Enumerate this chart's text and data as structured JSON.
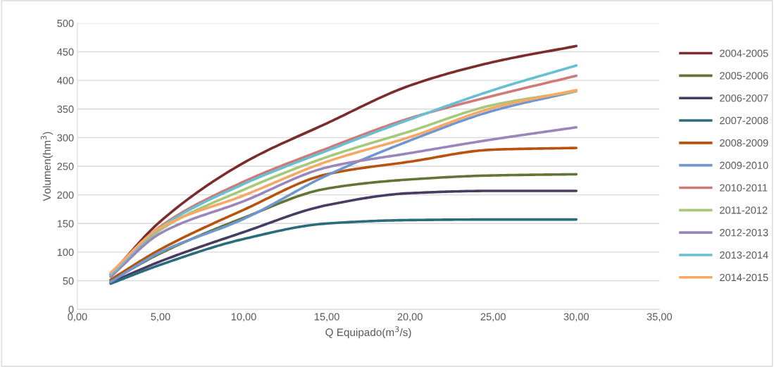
{
  "chart_data": {
    "type": "line",
    "xlabel": "Q Equipado(m$^{3}$/s)",
    "ylabel": "Volumen(hm$^{3}$)",
    "x": [
      2,
      5,
      10,
      15,
      20,
      25,
      30
    ],
    "xlim": [
      0,
      35
    ],
    "xticks": [
      {
        "value": 0,
        "label": "0,00"
      },
      {
        "value": 5,
        "label": "5,00"
      },
      {
        "value": 10,
        "label": "10,00"
      },
      {
        "value": 15,
        "label": "15,00"
      },
      {
        "value": 20,
        "label": "20,00"
      },
      {
        "value": 25,
        "label": "25,00"
      },
      {
        "value": 30,
        "label": "30,00"
      },
      {
        "value": 35,
        "label": "35,00"
      }
    ],
    "ylim": [
      0,
      500
    ],
    "yticks": [
      0,
      50,
      100,
      150,
      200,
      250,
      300,
      350,
      400,
      450,
      500
    ],
    "grid": "y",
    "legend": "right",
    "marker": "none",
    "line_style": "solid",
    "series": [
      {
        "name": "2004-2005",
        "color": "#7b2c2c",
        "values": [
          61,
          154,
          256,
          325,
          391,
          432,
          460
        ]
      },
      {
        "name": "2005-2006",
        "color": "#637536",
        "values": [
          50,
          98,
          160,
          211,
          227,
          234,
          236
        ]
      },
      {
        "name": "2006-2007",
        "color": "#4a3b62",
        "values": [
          47,
          84,
          135,
          182,
          203,
          207,
          207
        ]
      },
      {
        "name": "2007-2008",
        "color": "#2a6c7c",
        "values": [
          45,
          78,
          123,
          150,
          156,
          157,
          157
        ]
      },
      {
        "name": "2008-2009",
        "color": "#b8530e",
        "values": [
          52,
          105,
          174,
          236,
          258,
          279,
          282
        ]
      },
      {
        "name": "2009-2010",
        "color": "#6f97cf",
        "values": [
          48,
          100,
          158,
          234,
          295,
          347,
          381
        ]
      },
      {
        "name": "2010-2011",
        "color": "#d07a78",
        "values": [
          62,
          145,
          223,
          281,
          334,
          373,
          408
        ]
      },
      {
        "name": "2011-2012",
        "color": "#a7c878",
        "values": [
          58,
          139,
          209,
          266,
          311,
          357,
          381
        ]
      },
      {
        "name": "2012-2013",
        "color": "#9b86bb",
        "values": [
          57,
          133,
          189,
          248,
          273,
          297,
          318
        ]
      },
      {
        "name": "2013-2014",
        "color": "#68bfd2",
        "values": [
          60,
          143,
          219,
          277,
          332,
          383,
          426
        ]
      },
      {
        "name": "2014-2015",
        "color": "#f8a765",
        "values": [
          64,
          143,
          199,
          258,
          301,
          352,
          383
        ]
      }
    ]
  }
}
